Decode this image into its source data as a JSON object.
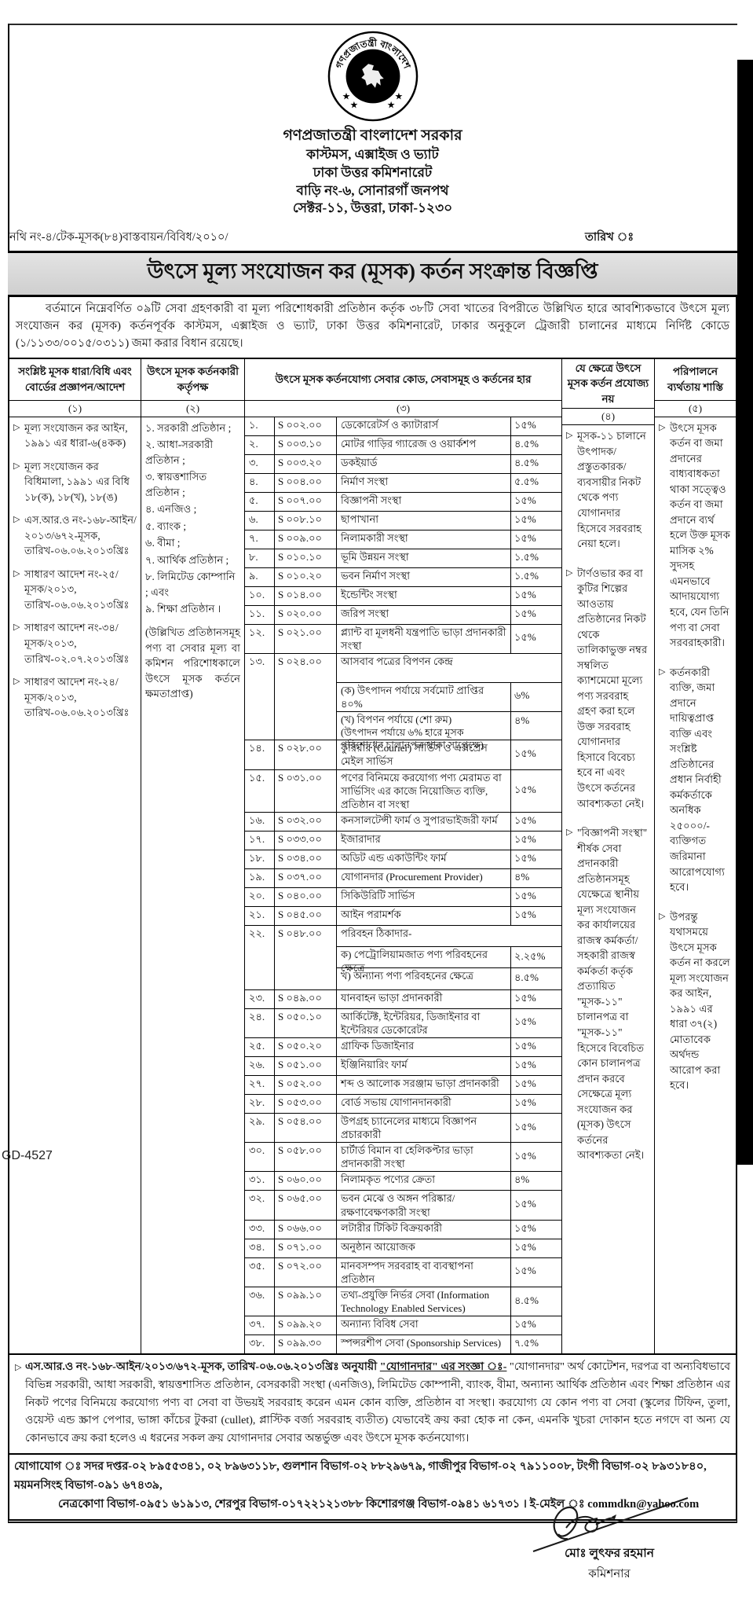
{
  "page": {
    "gd_number": "GD-4527"
  },
  "header": {
    "emblem_ring_top": "গণপ্রজাতন্ত্রী বাংলাদেশ",
    "emblem_ring_bottom": "সরকার",
    "govt": "গণপ্রজাতন্ত্রী বাংলাদেশ সরকার",
    "dept": "কাস্টমস, এক্সাইজ ও ভ্যাট",
    "office": "ঢাকা উত্তর কমিশনারেট",
    "address1": "বাড়ি নং-৬, সোনারগাঁ জনপথ",
    "address2": "সেক্টর-১১, উত্তরা, ঢাকা-১২৩০"
  },
  "memo": {
    "file_no": "নথি নং-৪/টেক-মূসক(৮৪)বাস্তবায়ন/বিবিধ/২০১০/",
    "date_label": "তারিখ ঃ"
  },
  "title": "উৎসে মূল্য সংযোজন কর (মূসক) কর্তন সংক্রান্ত বিজ্ঞপ্তি",
  "intro": "বর্তমানে নিম্নেবর্ণিত ০৯টি সেবা গ্রহণকারী বা মূল্য পরিশোধকারী প্রতিষ্ঠান কর্তৃক ৩৮টি সেবা খাতের বিপরীতে উল্লিখিত হারে আবশ্যিকভাবে উৎসে মূল্য সংযোজন কর (মূসক) কর্তনপূর্বক কাস্টমস, এক্সাইজ ও ভ্যাট, ঢাকা উত্তর কমিশনারেট, ঢাকার অনুকূলে ট্রেজারী চালানের মাধ্যমে নির্দিষ্ট কোডে (১/১১৩৩/০০১৫/০৩১১) জমা করার বিধান রয়েছে।",
  "table": {
    "headers": {
      "col1": "সংশ্লিষ্ট মূসক ধারা/বিধি এবং বোর্ডের প্রজ্ঞাপন/আদেশ",
      "col2": "উৎসে মূসক কর্তনকারী কর্তৃপক্ষ",
      "col3": "উৎসে মূসক কর্তনযোগ্য সেবার কোড, সেবাসমূহ ও কর্তনের হার",
      "col4": "যে ক্ষেত্রে উৎসে মূসক কর্তন প্রযোজ্য নয়",
      "col5": "পরিপালনে ব্যর্থতায় শাস্তি",
      "nums": [
        "(১)",
        "(২)",
        "(৩)",
        "(৪)",
        "(৫)"
      ]
    },
    "col1_items": [
      "মূল্য সংযোজন কর আইন, ১৯৯১ এর ধারা-৬(৪কক)",
      "মূল্য সংযোজন কর বিধিমালা, ১৯৯১ এর বিধি ১৮(ক), ১৮(খ), ১৮(ঙ)",
      "এস.আর.ও নং-১৬৮-আইন/২০১৩/৬৭২-মূসক, তারিখ-০৬.০৬.২০১৩খ্রিঃ",
      "সাধারণ আদেশ নং-২৫/মূসক/২০১৩, তারিখ-০৬.০৬.২০১৩খ্রিঃ",
      "সাধারণ আদেশ নং-৩৪/মূসক/২০১৩, তারিখ-০২.০৭.২০১৩খ্রিঃ",
      "সাধারণ আদেশ নং-২৪/মূসক/২০১৩, তারিখ-০৬.০৬.২০১৩খ্রিঃ"
    ],
    "col2_items": [
      "১. সরকারী প্রতিষ্ঠান ;",
      "২. আধা-সরকারী প্রতিষ্ঠান ;",
      "৩. স্বায়ত্তশাসিত প্রতিষ্ঠান ;",
      "৪. এনজিও ;",
      "৫. ব্যাংক ;",
      "৬. বীমা ;",
      "৭. আর্থিক প্রতিষ্ঠান ;",
      "৮. লিমিটেড কোম্পানি ; এবং",
      "৯. শিক্ষা প্রতিষ্ঠান ।"
    ],
    "col2_note": "(উল্লিখিত প্রতিষ্ঠানসমূহ পণ্য বা সেবার মূল্য বা কমিশন পরিশোধকালে উৎসে মূসক কর্তনে ক্ষমতাপ্রাপ্ত)",
    "services": [
      {
        "no": "১.",
        "code": "S ০০২.০০",
        "desc": "ডেকোরেটর্স ও ক্যাটারার্স",
        "rate": "১৫%"
      },
      {
        "no": "২.",
        "code": "S ০০৩.১০",
        "desc": "মোটর গাড়ির গ্যারেজ ও ওয়ার্কশপ",
        "rate": "৪.৫%"
      },
      {
        "no": "৩.",
        "code": "S ০০৩.২০",
        "desc": "ডকইয়ার্ড",
        "rate": "৪.৫%"
      },
      {
        "no": "৪.",
        "code": "S ০০৪.০০",
        "desc": "নির্মাণ সংস্থা",
        "rate": "৫.৫%"
      },
      {
        "no": "৫.",
        "code": "S ০০৭.০০",
        "desc": "বিজ্ঞাপনী সংস্থা",
        "rate": "১৫%"
      },
      {
        "no": "৬.",
        "code": "S ০০৮.১০",
        "desc": "ছাপাখানা",
        "rate": "১৫%"
      },
      {
        "no": "৭.",
        "code": "S ০০৯.০০",
        "desc": "নিলামকারী সংস্থা",
        "rate": "১৫%"
      },
      {
        "no": "৮.",
        "code": "S ০১০.১০",
        "desc": "ভূমি উন্নয়ন সংস্থা",
        "rate": "১.৫%"
      },
      {
        "no": "৯.",
        "code": "S ০১০.২০",
        "desc": "ভবন নির্মাণ সংস্থা",
        "rate": "১.৫%"
      },
      {
        "no": "১০.",
        "code": "S ০১৪.০০",
        "desc": "ইন্ডেন্টিং সংস্থা",
        "rate": "১৫%"
      },
      {
        "no": "১১.",
        "code": "S ০২০.০০",
        "desc": "জরিপ সংস্থা",
        "rate": "১৫%"
      },
      {
        "no": "১২.",
        "code": "S ০২১.০০",
        "desc": "প্ল্যান্ট বা মূলধনী যন্ত্রপাতি ভাড়া প্রদানকারী সংস্থা",
        "rate": "১৫%"
      },
      {
        "no": "১৩.",
        "code": "S ০২৪.০০",
        "desc": "আসবাব পত্রের বিপণন কেন্দ্র",
        "rate": null,
        "subs": [
          {
            "label": "(ক) উৎপাদন পর্যায়ে সর্বমোট প্রাপ্তির ৪০%",
            "rate": "৬%"
          },
          {
            "label": "(খ) বিপণন পর্যায়ে (শো রুম)",
            "rate": "৪%",
            "note": "(উৎপাদন পর্যায়ে ৬% হারে মূসক পরিশোধের চালানপত্র থাকা সাপেক্ষে)"
          }
        ]
      },
      {
        "no": "১৪.",
        "code": "S ০২৮.০০",
        "desc": "কুরিয়ার (Courier) সার্ভিস ও এক্সপ্রেস মেইল সার্ভিস",
        "rate": "১৫%"
      },
      {
        "no": "১৫.",
        "code": "S ০৩১.০০",
        "desc": "পণের বিনিময়ে করযোগ্য পণ্য মেরামত বা সার্ভিসিং এর কাজে নিয়োজিত ব্যক্তি, প্রতিষ্ঠান বা সংস্থা",
        "rate": "১৫%"
      },
      {
        "no": "১৬.",
        "code": "S ০৩২.০০",
        "desc": "কনসালটেন্সী ফার্ম ও সুপারভাইজরী ফার্ম",
        "rate": "১৫%"
      },
      {
        "no": "১৭.",
        "code": "S ০৩৩.০০",
        "desc": "ইজারাদার",
        "rate": "১৫%"
      },
      {
        "no": "১৮.",
        "code": "S ০৩৪.০০",
        "desc": "অডিট এন্ড একাউন্টিং ফার্ম",
        "rate": "১৫%"
      },
      {
        "no": "১৯.",
        "code": "S ০৩৭.০০",
        "desc": "যোগানদার (Procurement Provider)",
        "rate": "৪%"
      },
      {
        "no": "২০.",
        "code": "S ০৪০.০০",
        "desc": "সিকিউরিটি সার্ভিস",
        "rate": "১৫%"
      },
      {
        "no": "২১.",
        "code": "S ০৪৫.০০",
        "desc": "আইন পরামর্শক",
        "rate": "১৫%"
      },
      {
        "no": "২২.",
        "code": "S ০৪৮.০০",
        "desc": "পরিবহন ঠিকাদার-",
        "rate": null,
        "subs": [
          {
            "label": "ক) পেট্রোলিয়ামজাত পণ্য পরিবহনের ক্ষেত্রে",
            "rate": "২.২৫%"
          },
          {
            "label": "খ) অন্যান্য পণ্য পরিবহনের ক্ষেত্রে",
            "rate": "৪.৫%"
          }
        ]
      },
      {
        "no": "২৩.",
        "code": "S ০৪৯.০০",
        "desc": "যানবাহন ভাড়া প্রদানকারী",
        "rate": "১৫%"
      },
      {
        "no": "২৪.",
        "code": "S ০৫০.১০",
        "desc": "আর্কিটেক্ট, ইন্টেরিয়র, ডিজাইনার বা ইন্টেরিয়র ডেকোরেটর",
        "rate": "১৫%"
      },
      {
        "no": "২৫.",
        "code": "S ০৫০.২০",
        "desc": "গ্রাফিক ডিজাইনার",
        "rate": "১৫%"
      },
      {
        "no": "২৬.",
        "code": "S ০৫১.০০",
        "desc": "ইঞ্জিনিয়ারিং ফার্ম",
        "rate": "১৫%"
      },
      {
        "no": "২৭.",
        "code": "S ০৫২.০০",
        "desc": "শব্দ ও আলোক সরঞ্জাম ভাড়া প্রদানকারী",
        "rate": "১৫%"
      },
      {
        "no": "২৮.",
        "code": "S ০৫৩.০০",
        "desc": "বোর্ড সভায় যোগানদানকারী",
        "rate": "১৫%"
      },
      {
        "no": "২৯.",
        "code": "S ০৫৪.০০",
        "desc": "উপগ্রহ চ্যানেলের মাধ্যমে বিজ্ঞাপন প্রচারকারী",
        "rate": "১৫%"
      },
      {
        "no": "৩০.",
        "code": "S ০৫৮.০০",
        "desc": "চার্টার্ড বিমান বা হেলিকপ্টার ভাড়া প্রদানকারী সংস্থা",
        "rate": "১৫%"
      },
      {
        "no": "৩১.",
        "code": "S ০৬০.০০",
        "desc": "নিলামকৃত পণ্যের ক্রেতা",
        "rate": "৪%"
      },
      {
        "no": "৩২.",
        "code": "S ০৬৫.০০",
        "desc": "ভবন মেঝে ও অঙ্গন পরিষ্কার/রক্ষণাবেক্ষণকারী সংস্থা",
        "rate": "১৫%"
      },
      {
        "no": "৩৩.",
        "code": "S ০৬৬.০০",
        "desc": "লটারীর টিকিট বিক্রয়কারী",
        "rate": "১৫%"
      },
      {
        "no": "৩৪.",
        "code": "S ০৭১.০০",
        "desc": "অনুষ্ঠান আয়োজক",
        "rate": "১৫%"
      },
      {
        "no": "৩৫.",
        "code": "S ০৭২.০০",
        "desc": "মানবসম্পদ সরবরাহ বা ব্যবস্থাপনা প্রতিষ্ঠান",
        "rate": "১৫%"
      },
      {
        "no": "৩৬.",
        "code": "S ০৯৯.১০",
        "desc": "তথ্য-প্রযুক্তি নির্ভর সেবা (Information Technology Enabled Services)",
        "rate": "৪.৫%"
      },
      {
        "no": "৩৭.",
        "code": "S ০৯৯.২০",
        "desc": "অন্যান্য বিবিধ সেবা",
        "rate": "১৫%"
      },
      {
        "no": "৩৮.",
        "code": "S ০৯৯.৩০",
        "desc": "স্পন্সরশীপ সেবা (Sponsorship Services)",
        "rate": "৭.৫%"
      }
    ],
    "col4_items": [
      "মূসক-১১ চালানে উৎপাদক/ প্রস্তুতকারক/ ব্যবসায়ীর নিকট থেকে পণ্য যোগানদার হিসেবে সরবরাহ নেয়া হলে।",
      "টার্ণওভার কর বা কুটির শিল্পের আওতায় প্রতিষ্ঠানের নিকট থেকে তালিকাভুক্ত নম্বর সম্বলিত ক্যাশমেমো মূল্যে পণ্য সরবরাহ গ্রহণ করা হলে উক্ত সরবরাহ যোগানদার হিসাবে বিবেচ্য হবে না এবং উৎসে কর্তনের আবশ্যকতা নেই।",
      "\"বিজ্ঞাপনী সংস্থা\" শীর্ষক সেবা প্রদানকারী প্রতিষ্ঠানসমূহ যেক্ষেত্রে স্থানীয় মূল্য সংযোজন কর কার্যালয়ের রাজস্ব কর্মকর্তা/সহকারী রাজস্ব কর্মকর্তা কর্তৃক প্রত্যায়িত \"মূসক-১১\" চালানপত্র বা \"মূসক-১১\" হিসেবে বিবেচিত কোন চালানপত্র প্রদান করবে সেক্ষেত্রে মূল্য সংযোজন কর (মূসক) উৎসে কর্তনের আবশ্যকতা নেই।"
    ],
    "col5_items": [
      "উৎসে মূসক কর্তন বা জমা প্রদানের বাধ্যবাধকতা থাকা সত্ত্বেও কর্তন বা জমা প্রদানে ব্যর্থ হলে উক্ত মূসক মাসিক ২% সুদসহ এমনভাবে আদায়যোগ্য হবে, যেন তিনি পণ্য বা সেবা সরবরাহকারী।",
      "কর্তনকারী ব্যক্তি, জমা প্রদানে দায়িত্বপ্রাপ্ত ব্যক্তি এবং সংশ্লিষ্ট প্রতিষ্ঠানের প্রধান নির্বাহী কর্মকর্তাকে অনধিক ২৫০০০/- ব্যক্তিগত জরিমানা আরোপযোগ্য হবে।",
      "উপরন্তু যথাসময়ে উৎসে মূসক কর্তন না করলে মূল্য সংযোজন কর আইন, ১৯৯১ এর ধারা ৩৭(২) মোতাবেক অর্থদন্ড আরোপ করা হবে।"
    ]
  },
  "footnote": {
    "bold_intro": "এস.আর.ও নং-১৬৮-আইন/২০১৩/৬৭২-মূসক, তারিখ-০৬.০৬.২০১৩খ্রিঃ অনুযায়ী",
    "quote": "\"যোগানদার\" এর সংজ্ঞা ঃ-",
    "body": " \"যোগানদার\" অর্থ কোটেশন, দরপত্র বা অন্যবিধভাবে বিভিন্ন সরকারী, আধা সরকারী, স্বায়ত্তশাসিত প্রতিষ্ঠান, বেসরকারী সংস্থা (এনজিও), লিমিটেড কোম্পানী, ব্যাংক, বীমা, অন্যান্য আর্থিক প্রতিষ্ঠান এবং শিক্ষা প্রতিষ্ঠান এর নিকট পণের বিনিময়ে করযোগ্য পণ্য বা সেবা বা উভয়ই সরবরাহ করেন এমন কোন ব্যক্তি, প্রতিষ্ঠান বা সংস্থা। করযোগ্য যে কোন পণ্য বা সেবা (স্কুলের টিফিন, তুলা, ওয়েস্ট এন্ড স্ক্রাপ পেপার, ভাঙ্গা কাঁচের টুকরা (cullet), প্লাস্টিক বর্জ্য সরবরাহ ব্যতীত) যেভাবেই ক্রয় করা হোক না কেন, এমনকি খুচরা দোকান হতে নগদে বা অন্য যে কোনভাবে ক্রয় করা হলেও এ ধরনের সকল ক্রয় যোগানদার সেবার অন্তর্ভুক্ত এবং উৎসে মূসক কর্তনযোগ্য।"
  },
  "contact": {
    "line1": "যোগাযোগ ঃ সদর দপ্তর-০২ ৮৯৫৫৩৪১, ০২ ৮৯৬৩১১৮, গুলশান বিভাগ-০২ ৮৮২৯৬৭৯, গাজীপুর বিভাগ-০২ ৭৯১১০০৮, টংগী বিভাগ-০২ ৮৯৩১৮৪০, ময়মনসিংহ বিভাগ-০৯১ ৬৭৪৩৯,",
    "line2_pre": "নেত্রকোণা বিভাগ-০৯৫১ ৬১৯১৩, শেরপুর বিভাগ-০১৭২২১২১৩৮৮ কিশোরগঞ্জ বিভাগ-০৯৪১ ৬১৭৩১ । ই-মেইল ঃ ",
    "email": "commdkn@yahoo.com"
  },
  "signature": {
    "name": "মোঃ লুৎফর রহমান",
    "title": "কমিশনার"
  }
}
